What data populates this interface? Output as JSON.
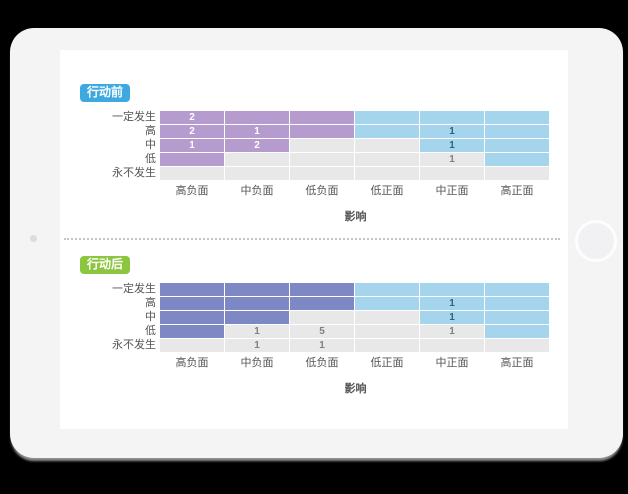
{
  "palette": {
    "purple": {
      "bg": "#b69bce",
      "text": "#ffffff"
    },
    "indigo": {
      "bg": "#7e88c4",
      "text": "#ffffff"
    },
    "blue": {
      "bg": "#a5d5ec",
      "text": "#2f6377"
    },
    "gray": {
      "bg": "#e8e8e8",
      "text": "#808080"
    }
  },
  "chart_data": [
    {
      "type": "heatmap",
      "title_badge": "行动前",
      "badge_color": "#3ea9e0",
      "xlabel": "影响",
      "rows": [
        "一定发生",
        "高",
        "中",
        "低",
        "永不发生"
      ],
      "columns": [
        "高负面",
        "中负面",
        "低负面",
        "低正面",
        "中正面",
        "高正面"
      ],
      "cell_colors": [
        [
          "purple",
          "purple",
          "purple",
          "blue",
          "blue",
          "blue"
        ],
        [
          "purple",
          "purple",
          "purple",
          "blue",
          "blue",
          "blue"
        ],
        [
          "purple",
          "purple",
          "gray",
          "gray",
          "blue",
          "blue"
        ],
        [
          "purple",
          "gray",
          "gray",
          "gray",
          "gray",
          "blue"
        ],
        [
          "gray",
          "gray",
          "gray",
          "gray",
          "gray",
          "gray"
        ]
      ],
      "cell_values": [
        [
          "2",
          "",
          "",
          "",
          "",
          ""
        ],
        [
          "2",
          "1",
          "",
          "",
          "1",
          ""
        ],
        [
          "1",
          "2",
          "",
          "",
          "1",
          ""
        ],
        [
          "",
          "",
          "",
          "",
          "1",
          ""
        ],
        [
          "",
          "",
          "",
          "",
          "",
          ""
        ]
      ]
    },
    {
      "type": "heatmap",
      "title_badge": "行动后",
      "badge_color": "#8cc640",
      "xlabel": "影响",
      "rows": [
        "一定发生",
        "高",
        "中",
        "低",
        "永不发生"
      ],
      "columns": [
        "高负面",
        "中负面",
        "低负面",
        "低正面",
        "中正面",
        "高正面"
      ],
      "cell_colors": [
        [
          "indigo",
          "indigo",
          "indigo",
          "blue",
          "blue",
          "blue"
        ],
        [
          "indigo",
          "indigo",
          "indigo",
          "blue",
          "blue",
          "blue"
        ],
        [
          "indigo",
          "indigo",
          "gray",
          "gray",
          "blue",
          "blue"
        ],
        [
          "indigo",
          "gray",
          "gray",
          "gray",
          "gray",
          "blue"
        ],
        [
          "gray",
          "gray",
          "gray",
          "gray",
          "gray",
          "gray"
        ]
      ],
      "cell_values": [
        [
          "",
          "",
          "",
          "",
          "",
          ""
        ],
        [
          "",
          "",
          "",
          "",
          "1",
          ""
        ],
        [
          "",
          "",
          "",
          "",
          "1",
          ""
        ],
        [
          "",
          "1",
          "5",
          "",
          "1",
          ""
        ],
        [
          "",
          "1",
          "1",
          "",
          "",
          ""
        ]
      ]
    }
  ]
}
